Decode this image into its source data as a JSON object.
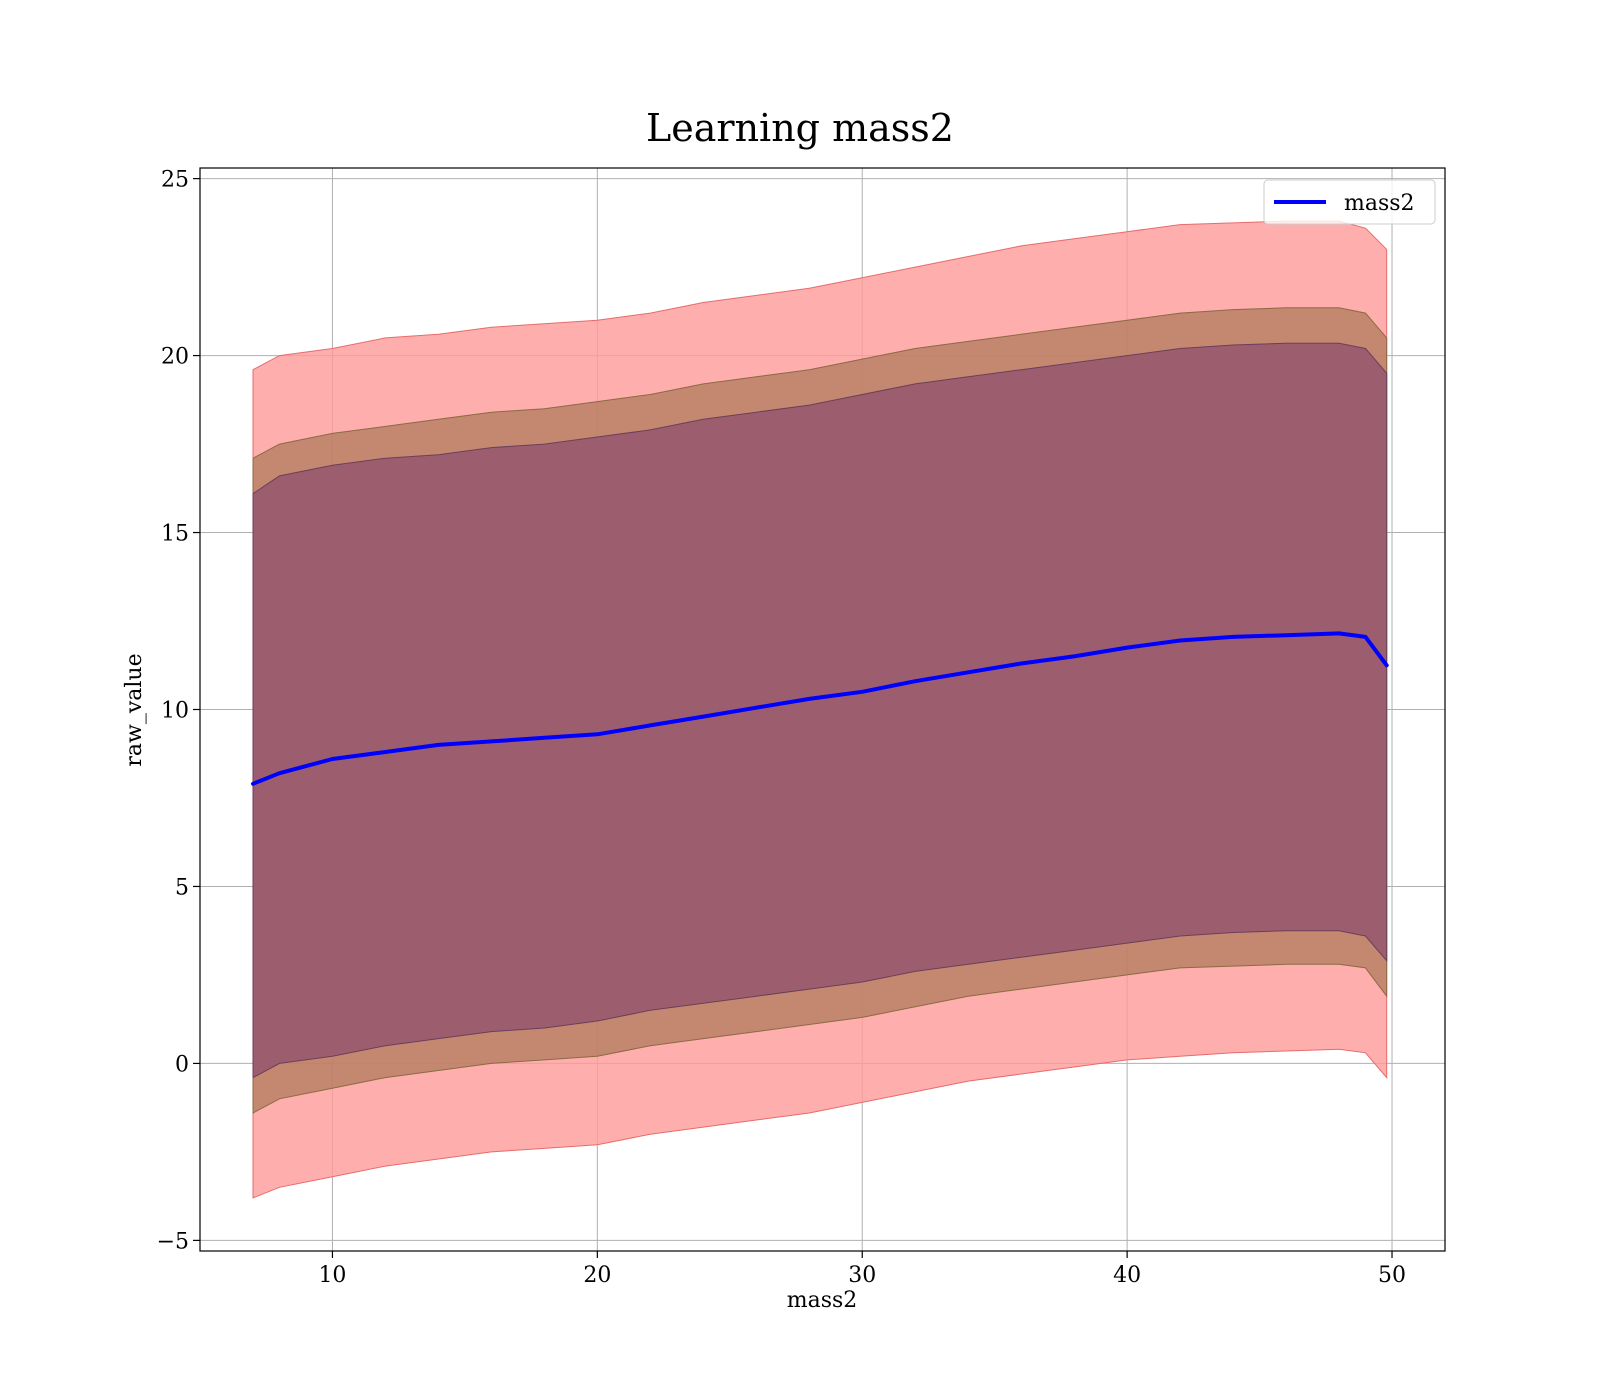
{
  "chart_data": {
    "type": "line",
    "title": "Learning mass2",
    "xlabel": "mass2",
    "ylabel": "raw_value",
    "xlim": [
      5,
      52
    ],
    "ylim": [
      -5.3,
      25.3
    ],
    "xticks": [
      10,
      20,
      30,
      40,
      50
    ],
    "yticks": [
      -5,
      0,
      5,
      10,
      15,
      20,
      25
    ],
    "xtick_labels": [
      "10",
      "20",
      "30",
      "40",
      "50"
    ],
    "ytick_labels": [
      "−5",
      "0",
      "5",
      "10",
      "15",
      "20",
      "25"
    ],
    "grid": true,
    "legend": {
      "location": "top-right",
      "entries": [
        "mass2"
      ]
    },
    "colors": {
      "line": "#0000ff",
      "band_outer": "#ff9a9a",
      "band_middle": "#b07a5a",
      "band_inner": "#8b4d6e"
    },
    "x": [
      7,
      8,
      10,
      12,
      14,
      16,
      18,
      20,
      22,
      24,
      26,
      28,
      30,
      32,
      34,
      36,
      38,
      40,
      42,
      44,
      46,
      48,
      49,
      49.8
    ],
    "series": [
      {
        "name": "mass2",
        "values": [
          7.9,
          8.2,
          8.6,
          8.8,
          9.0,
          9.1,
          9.2,
          9.3,
          9.55,
          9.8,
          10.05,
          10.3,
          10.5,
          10.8,
          11.05,
          11.3,
          11.5,
          11.75,
          11.95,
          12.05,
          12.1,
          12.15,
          12.05,
          11.25
        ]
      }
    ],
    "bands": [
      {
        "layer": "outer",
        "lower": [
          -3.8,
          -3.5,
          -3.2,
          -2.9,
          -2.7,
          -2.5,
          -2.4,
          -2.3,
          -2.0,
          -1.8,
          -1.6,
          -1.4,
          -1.1,
          -0.8,
          -0.5,
          -0.3,
          -0.1,
          0.1,
          0.2,
          0.3,
          0.35,
          0.4,
          0.3,
          -0.4
        ],
        "upper": [
          19.6,
          20.0,
          20.2,
          20.5,
          20.6,
          20.8,
          20.9,
          21.0,
          21.2,
          21.5,
          21.7,
          21.9,
          22.2,
          22.5,
          22.8,
          23.1,
          23.3,
          23.5,
          23.7,
          23.75,
          23.8,
          23.8,
          23.6,
          23.0
        ]
      },
      {
        "layer": "middle",
        "lower": [
          -1.4,
          -1.0,
          -0.7,
          -0.4,
          -0.2,
          0.0,
          0.1,
          0.2,
          0.5,
          0.7,
          0.9,
          1.1,
          1.3,
          1.6,
          1.9,
          2.1,
          2.3,
          2.5,
          2.7,
          2.75,
          2.8,
          2.8,
          2.7,
          1.9
        ]
      },
      {
        "layer": "middle",
        "upper": [
          17.1,
          17.5,
          17.8,
          18.0,
          18.2,
          18.4,
          18.5,
          18.7,
          18.9,
          19.2,
          19.4,
          19.6,
          19.9,
          20.2,
          20.4,
          20.6,
          20.8,
          21.0,
          21.2,
          21.3,
          21.35,
          21.35,
          21.2,
          20.5
        ]
      },
      {
        "layer": "inner",
        "lower": [
          -0.4,
          0.0,
          0.2,
          0.5,
          0.7,
          0.9,
          1.0,
          1.2,
          1.5,
          1.7,
          1.9,
          2.1,
          2.3,
          2.6,
          2.8,
          3.0,
          3.2,
          3.4,
          3.6,
          3.7,
          3.75,
          3.75,
          3.6,
          2.9
        ],
        "upper": [
          16.1,
          16.6,
          16.9,
          17.1,
          17.2,
          17.4,
          17.5,
          17.7,
          17.9,
          18.2,
          18.4,
          18.6,
          18.9,
          19.2,
          19.4,
          19.6,
          19.8,
          20.0,
          20.2,
          20.3,
          20.35,
          20.35,
          20.2,
          19.5
        ]
      }
    ]
  }
}
